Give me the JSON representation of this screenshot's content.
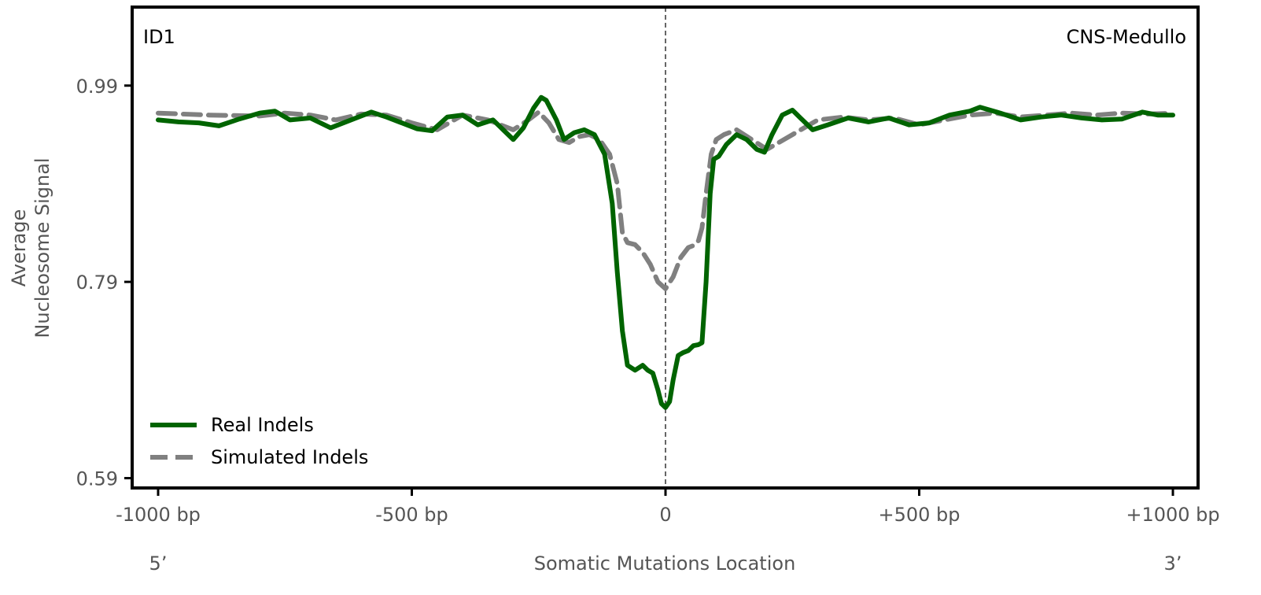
{
  "chart_data": {
    "type": "line",
    "panel_label_left": "ID1",
    "panel_label_right": "CNS-Medullo",
    "ylabel_line1": "Average",
    "ylabel_line2": "Nucleosome Signal",
    "xlabel": "Somatic Mutations Location",
    "x_end_labels": {
      "left": "5’",
      "right": "3’"
    },
    "xlim": [
      -1000,
      1000
    ],
    "ylim": [
      0.58,
      1.07
    ],
    "x_ticks": [
      {
        "value": -1000,
        "label": "-1000 bp"
      },
      {
        "value": -500,
        "label": "-500 bp"
      },
      {
        "value": 0,
        "label": "0"
      },
      {
        "value": 500,
        "label": "+500 bp"
      },
      {
        "value": 1000,
        "label": "+1000 bp"
      }
    ],
    "y_ticks": [
      {
        "value": 0.59,
        "label": "0.59"
      },
      {
        "value": 0.79,
        "label": "0.79"
      },
      {
        "value": 0.99,
        "label": "0.99"
      }
    ],
    "vline_x": 0,
    "legend_location": "lower-left",
    "grid": false,
    "series": [
      {
        "name": "Real Indels",
        "color": "#006400",
        "style": "solid",
        "x": [
          -1000,
          -960,
          -920,
          -880,
          -840,
          -800,
          -770,
          -740,
          -700,
          -660,
          -620,
          -580,
          -550,
          -520,
          -490,
          -460,
          -430,
          -400,
          -370,
          -340,
          -300,
          -280,
          -260,
          -245,
          -235,
          -215,
          -200,
          -180,
          -160,
          -140,
          -120,
          -105,
          -95,
          -85,
          -75,
          -60,
          -45,
          -35,
          -25,
          -15,
          -8,
          0,
          8,
          15,
          25,
          35,
          45,
          55,
          65,
          72,
          80,
          88,
          95,
          105,
          120,
          140,
          160,
          180,
          195,
          210,
          230,
          250,
          270,
          290,
          320,
          360,
          400,
          440,
          480,
          520,
          560,
          600,
          620,
          660,
          700,
          740,
          780,
          820,
          860,
          900,
          940,
          970,
          1000
        ],
        "y": [
          0.955,
          0.953,
          0.952,
          0.949,
          0.956,
          0.962,
          0.964,
          0.955,
          0.957,
          0.947,
          0.955,
          0.963,
          0.958,
          0.952,
          0.946,
          0.944,
          0.958,
          0.96,
          0.95,
          0.955,
          0.935,
          0.947,
          0.967,
          0.978,
          0.975,
          0.955,
          0.935,
          0.942,
          0.945,
          0.94,
          0.92,
          0.87,
          0.8,
          0.74,
          0.705,
          0.7,
          0.705,
          0.7,
          0.697,
          0.68,
          0.666,
          0.662,
          0.668,
          0.69,
          0.715,
          0.718,
          0.72,
          0.725,
          0.726,
          0.728,
          0.79,
          0.88,
          0.915,
          0.918,
          0.93,
          0.94,
          0.935,
          0.925,
          0.922,
          0.94,
          0.96,
          0.965,
          0.955,
          0.945,
          0.95,
          0.957,
          0.953,
          0.957,
          0.95,
          0.952,
          0.96,
          0.964,
          0.968,
          0.962,
          0.955,
          0.958,
          0.96,
          0.957,
          0.955,
          0.956,
          0.963,
          0.96,
          0.96
        ]
      },
      {
        "name": "Simulated Indels",
        "color": "#808080",
        "style": "dashed",
        "x": [
          -1000,
          -900,
          -800,
          -750,
          -700,
          -650,
          -600,
          -550,
          -500,
          -450,
          -400,
          -350,
          -300,
          -270,
          -250,
          -230,
          -210,
          -190,
          -170,
          -150,
          -130,
          -110,
          -95,
          -85,
          -75,
          -60,
          -45,
          -30,
          -15,
          0,
          15,
          30,
          45,
          55,
          65,
          72,
          80,
          90,
          100,
          115,
          140,
          170,
          200,
          250,
          300,
          350,
          400,
          450,
          500,
          550,
          600,
          650,
          700,
          750,
          800,
          850,
          900,
          950,
          1000
        ],
        "y": [
          0.962,
          0.96,
          0.959,
          0.962,
          0.96,
          0.955,
          0.961,
          0.96,
          0.952,
          0.945,
          0.96,
          0.955,
          0.945,
          0.955,
          0.963,
          0.952,
          0.935,
          0.932,
          0.938,
          0.94,
          0.935,
          0.92,
          0.89,
          0.84,
          0.83,
          0.828,
          0.82,
          0.808,
          0.79,
          0.783,
          0.795,
          0.815,
          0.825,
          0.827,
          0.832,
          0.845,
          0.88,
          0.92,
          0.935,
          0.94,
          0.945,
          0.935,
          0.925,
          0.94,
          0.955,
          0.958,
          0.955,
          0.957,
          0.95,
          0.955,
          0.96,
          0.962,
          0.958,
          0.96,
          0.962,
          0.96,
          0.962,
          0.961,
          0.962
        ]
      }
    ]
  }
}
